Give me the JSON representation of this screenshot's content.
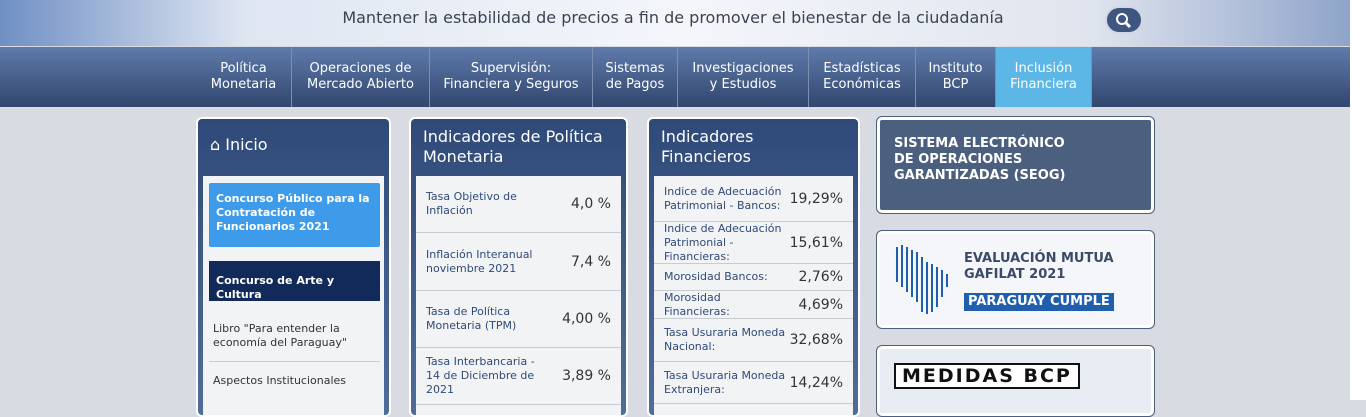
{
  "header": {
    "tagline": "Mantener la estabilidad de precios a fin de promover el bienestar de la ciudadanía"
  },
  "nav": [
    {
      "lines": [
        "Política",
        "Monetaria"
      ]
    },
    {
      "lines": [
        "Operaciones de",
        "Mercado Abierto"
      ]
    },
    {
      "lines": [
        "Supervisión:",
        "Financiera y Seguros"
      ]
    },
    {
      "lines": [
        "Sistemas",
        "de Pagos"
      ]
    },
    {
      "lines": [
        "Investigaciones",
        "y Estudios"
      ]
    },
    {
      "lines": [
        "Estadísticas",
        "Económicas"
      ]
    },
    {
      "lines": [
        "Instituto",
        "BCP"
      ]
    },
    {
      "lines": [
        "Inclusión",
        "Financiera"
      ]
    }
  ],
  "sidebar": {
    "title": "Inicio",
    "items": [
      "Concurso Público para la Contratación de Funcionarios 2021",
      "Concurso de Arte y Cultura",
      "Libro \"Para entender la economía del Paraguay\"",
      "Aspectos Institucionales"
    ]
  },
  "policy_indicators": {
    "title": [
      "Indicadores de Política",
      "Monetaria"
    ],
    "rows": [
      {
        "label": "Tasa Objetivo de Inflación",
        "value": "4,0 %"
      },
      {
        "label": "Inflación Interanual noviembre 2021",
        "value": "7,4 %"
      },
      {
        "label": "Tasa de Política Monetaria (TPM)",
        "value": "4,00 %"
      },
      {
        "label": "Tasa Interbancaria - 14 de Diciembre de 2021",
        "value": "3,89 %"
      }
    ]
  },
  "financial_indicators": {
    "title": [
      "Indicadores",
      "Financieros"
    ],
    "rows": [
      {
        "label": "Indice de Adecuación Patrimonial - Bancos:",
        "value": "19,29%"
      },
      {
        "label": "Indice de Adecuación Patrimonial - Financieras:",
        "value": "15,61%"
      },
      {
        "label": "Morosidad Bancos:",
        "value": "2,76%"
      },
      {
        "label": "Morosidad Financieras:",
        "value": "4,69%"
      },
      {
        "label": "Tasa Usuraria Moneda Nacional:",
        "value": "32,68%"
      },
      {
        "label": "Tasa Usuraria Moneda Extranjera:",
        "value": "14,24%"
      }
    ]
  },
  "banners": [
    {
      "lines": [
        "SISTEMA ELECTRÓNICO",
        "DE OPERACIONES",
        "GARANTIZADAS (SEOG)"
      ]
    },
    {
      "lines": [
        "EVALUACIÓN MUTUA",
        "GAFILAT 2021"
      ],
      "badge": "PARAGUAY CUMPLE"
    },
    {
      "lines": [
        "MEDIDAS BCP"
      ]
    }
  ]
}
